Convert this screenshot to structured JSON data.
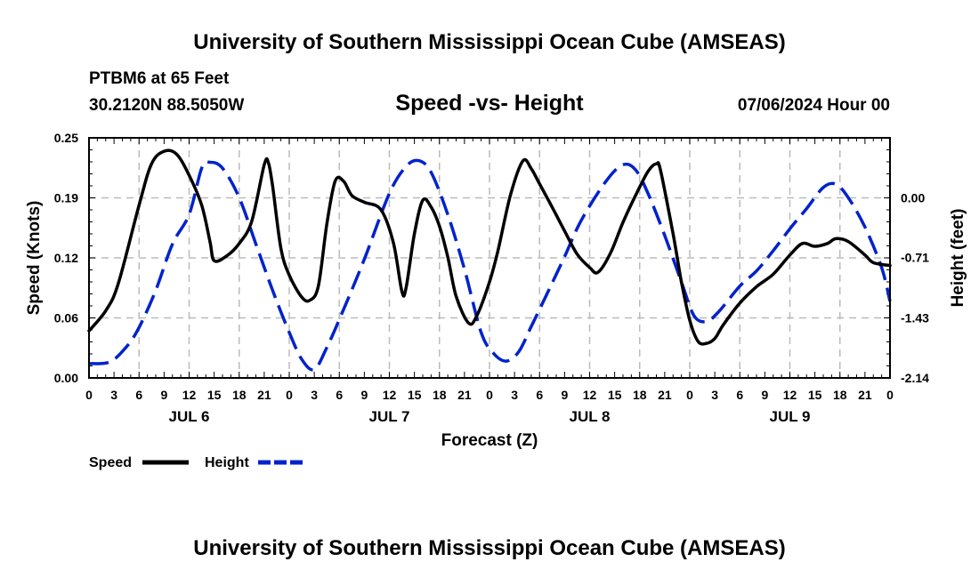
{
  "header": {
    "title": "University of Southern Mississippi Ocean Cube (AMSEAS)",
    "station": "PTBM6 at 65 Feet",
    "location": "30.2120N  88.5050W",
    "date": "07/06/2024 Hour 00",
    "footer_title": "University of Southern Mississippi Ocean Cube (AMSEAS)"
  },
  "chart_data": {
    "type": "line",
    "title": "Speed -vs- Height",
    "xlabel": "Forecast (Z)",
    "ylabel": "Speed (Knots)",
    "y2label": "Height (feet)",
    "xlim": [
      0,
      96
    ],
    "ylim": [
      0,
      0.25
    ],
    "y2lim": [
      -2.14,
      0.71
    ],
    "yticks": [
      "0.00",
      "0.06",
      "0.12",
      "0.19",
      "0.25"
    ],
    "yticks_values": [
      0,
      0.0625,
      0.125,
      0.1875,
      0.25
    ],
    "y2ticks": [
      "-2.14",
      "-1.43",
      "-0.71",
      "0.00"
    ],
    "y2ticks_values": [
      -2.14,
      -1.43,
      -0.71,
      0.0
    ],
    "xtick_labels": [
      "0",
      "3",
      "6",
      "9",
      "12",
      "15",
      "18",
      "21",
      "0",
      "3",
      "6",
      "9",
      "12",
      "15",
      "18",
      "21",
      "0",
      "3",
      "6",
      "9",
      "12",
      "15",
      "18",
      "21",
      "0",
      "3",
      "6",
      "9",
      "12",
      "15",
      "18",
      "21",
      "0"
    ],
    "day_labels": [
      {
        "label": "JUL 6",
        "hour": 12
      },
      {
        "label": "JUL 7",
        "hour": 36
      },
      {
        "label": "JUL 8",
        "hour": 60
      },
      {
        "label": "JUL 9",
        "hour": 84
      }
    ],
    "grid": true,
    "legend": {
      "position": "bottom-left"
    },
    "series": [
      {
        "name": "Speed",
        "axis": "left",
        "color": "#000000",
        "dash": "solid",
        "points": [
          [
            0,
            0.049
          ],
          [
            2,
            0.07
          ],
          [
            3.5,
            0.098
          ],
          [
            6,
            0.18
          ],
          [
            7.5,
            0.223
          ],
          [
            9,
            0.236
          ],
          [
            10.5,
            0.233
          ],
          [
            12,
            0.211
          ],
          [
            13.5,
            0.18
          ],
          [
            14.5,
            0.142
          ],
          [
            15,
            0.122
          ],
          [
            16.5,
            0.127
          ],
          [
            18,
            0.14
          ],
          [
            19.5,
            0.163
          ],
          [
            21,
            0.222
          ],
          [
            21.5,
            0.224
          ],
          [
            22,
            0.2
          ],
          [
            23,
            0.135
          ],
          [
            24,
            0.107
          ],
          [
            25.5,
            0.084
          ],
          [
            26.5,
            0.081
          ],
          [
            27.5,
            0.096
          ],
          [
            28.5,
            0.16
          ],
          [
            29.5,
            0.205
          ],
          [
            30.5,
            0.205
          ],
          [
            31.5,
            0.19
          ],
          [
            33,
            0.183
          ],
          [
            35,
            0.175
          ],
          [
            36.5,
            0.14
          ],
          [
            37.5,
            0.09
          ],
          [
            38,
            0.094
          ],
          [
            39,
            0.15
          ],
          [
            40,
            0.185
          ],
          [
            41,
            0.178
          ],
          [
            42,
            0.158
          ],
          [
            43,
            0.126
          ],
          [
            44,
            0.085
          ],
          [
            45.5,
            0.057
          ],
          [
            46.5,
            0.065
          ],
          [
            48,
            0.1
          ],
          [
            49,
            0.132
          ],
          [
            50.5,
            0.19
          ],
          [
            52,
            0.226
          ],
          [
            53,
            0.218
          ],
          [
            54,
            0.202
          ],
          [
            55.5,
            0.178
          ],
          [
            57,
            0.153
          ],
          [
            58.5,
            0.129
          ],
          [
            60,
            0.115
          ],
          [
            61,
            0.11
          ],
          [
            62.5,
            0.13
          ],
          [
            64,
            0.162
          ],
          [
            65.5,
            0.19
          ],
          [
            67,
            0.215
          ],
          [
            68,
            0.223
          ],
          [
            68.5,
            0.216
          ],
          [
            70,
            0.15
          ],
          [
            71,
            0.1
          ],
          [
            72,
            0.06
          ],
          [
            73,
            0.038
          ],
          [
            74,
            0.036
          ],
          [
            75,
            0.041
          ],
          [
            76,
            0.055
          ],
          [
            78,
            0.078
          ],
          [
            80,
            0.095
          ],
          [
            82,
            0.108
          ],
          [
            84,
            0.128
          ],
          [
            85.5,
            0.14
          ],
          [
            87,
            0.137
          ],
          [
            88.5,
            0.14
          ],
          [
            89.5,
            0.145
          ],
          [
            91,
            0.142
          ],
          [
            93,
            0.128
          ],
          [
            94,
            0.12
          ],
          [
            96,
            0.117
          ]
        ]
      },
      {
        "name": "Height",
        "axis": "right",
        "color": "#0022cc",
        "dash": "dashed",
        "points": [
          [
            0,
            -1.97
          ],
          [
            2.5,
            -1.95
          ],
          [
            4.5,
            -1.77
          ],
          [
            6,
            -1.54
          ],
          [
            8,
            -1.1
          ],
          [
            10,
            -0.55
          ],
          [
            12,
            -0.2
          ],
          [
            13.5,
            0.35
          ],
          [
            14.5,
            0.42
          ],
          [
            16,
            0.35
          ],
          [
            18,
            0.0
          ],
          [
            20,
            -0.55
          ],
          [
            22,
            -1.1
          ],
          [
            24,
            -1.6
          ],
          [
            25.5,
            -1.92
          ],
          [
            27,
            -2.04
          ],
          [
            28.5,
            -1.78
          ],
          [
            30.5,
            -1.33
          ],
          [
            33,
            -0.73
          ],
          [
            36,
            0.05
          ],
          [
            38,
            0.37
          ],
          [
            39.5,
            0.44
          ],
          [
            41,
            0.3
          ],
          [
            43,
            -0.2
          ],
          [
            45,
            -0.85
          ],
          [
            47,
            -1.6
          ],
          [
            48.5,
            -1.85
          ],
          [
            50,
            -1.94
          ],
          [
            51.5,
            -1.83
          ],
          [
            53,
            -1.53
          ],
          [
            55,
            -1.12
          ],
          [
            57,
            -0.7
          ],
          [
            59,
            -0.27
          ],
          [
            62,
            0.2
          ],
          [
            64,
            0.39
          ],
          [
            65.5,
            0.33
          ],
          [
            67,
            0.05
          ],
          [
            69,
            -0.45
          ],
          [
            71,
            -1.0
          ],
          [
            72.5,
            -1.4
          ],
          [
            74,
            -1.47
          ],
          [
            75.5,
            -1.35
          ],
          [
            78,
            -1.05
          ],
          [
            80,
            -0.87
          ],
          [
            82,
            -0.63
          ],
          [
            84,
            -0.37
          ],
          [
            86,
            -0.13
          ],
          [
            88,
            0.12
          ],
          [
            89.5,
            0.16
          ],
          [
            91,
            0.0
          ],
          [
            93,
            -0.35
          ],
          [
            95,
            -0.83
          ],
          [
            96,
            -1.23
          ]
        ]
      }
    ]
  }
}
